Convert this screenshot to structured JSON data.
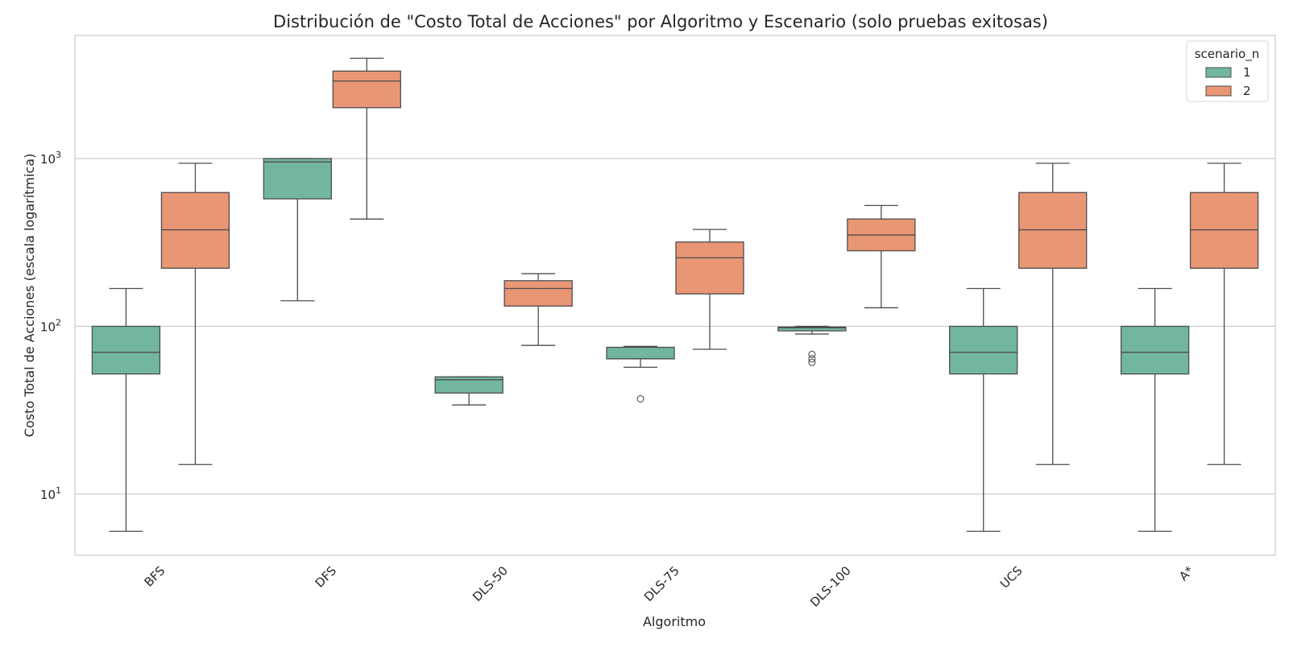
{
  "chart_data": {
    "type": "box",
    "title": "Distribución de \"Costo Total de Acciones\" por Algoritmo y Escenario (solo pruebas exitosas)",
    "xlabel": "Algoritmo",
    "ylabel": "Costo Total de Acciones (escala logarítmica)",
    "yscale": "log",
    "ylim": [
      4.5,
      5600
    ],
    "yticks": [
      10,
      100,
      1000
    ],
    "ytick_labels": [
      {
        "base": "10",
        "exp": "1"
      },
      {
        "base": "10",
        "exp": "2"
      },
      {
        "base": "10",
        "exp": "3"
      }
    ],
    "grid": "horizontal",
    "categories": [
      "BFS",
      "DFS",
      "DLS-50",
      "DLS-75",
      "DLS-100",
      "UCS",
      "A*"
    ],
    "legend": {
      "title": "scenario_n",
      "position": "top-right",
      "entries": [
        "1",
        "2"
      ]
    },
    "colors": {
      "1": "#72b6a1",
      "2": "#e99675",
      "line": "#4d4d4d",
      "grid": "#cccccc",
      "frame": "#cccccc"
    },
    "series": [
      {
        "name": "1",
        "boxes": [
          {
            "whislo": 6,
            "q1": 52,
            "med": 70,
            "q3": 100,
            "whishi": 168,
            "fliers": []
          },
          {
            "whislo": 142,
            "q1": 575,
            "med": 955,
            "q3": 1000,
            "whishi": 1000,
            "fliers": []
          },
          {
            "whislo": 34,
            "q1": 40,
            "med": 48,
            "q3": 50,
            "whishi": 50,
            "fliers": []
          },
          {
            "whislo": 57,
            "q1": 64,
            "med": 64,
            "q3": 75,
            "whishi": 76,
            "fliers": [
              37
            ]
          },
          {
            "whislo": 90,
            "q1": 94,
            "med": 98,
            "q3": 99,
            "whishi": 100,
            "fliers": [
              68,
              64,
              61
            ]
          },
          {
            "whislo": 6,
            "q1": 52,
            "med": 70,
            "q3": 100,
            "whishi": 168,
            "fliers": []
          },
          {
            "whislo": 6,
            "q1": 52,
            "med": 70,
            "q3": 100,
            "whishi": 168,
            "fliers": []
          }
        ]
      },
      {
        "name": "2",
        "boxes": [
          {
            "whislo": 15,
            "q1": 222,
            "med": 376,
            "q3": 627,
            "whishi": 937,
            "fliers": []
          },
          {
            "whislo": 436,
            "q1": 2010,
            "med": 2900,
            "q3": 3320,
            "whishi": 3960,
            "fliers": []
          },
          {
            "whislo": 77,
            "q1": 132,
            "med": 168,
            "q3": 187,
            "whishi": 206,
            "fliers": []
          },
          {
            "whislo": 73,
            "q1": 156,
            "med": 256,
            "q3": 318,
            "whishi": 378,
            "fliers": []
          },
          {
            "whislo": 129,
            "q1": 282,
            "med": 350,
            "q3": 436,
            "whishi": 525,
            "fliers": []
          },
          {
            "whislo": 15,
            "q1": 222,
            "med": 376,
            "q3": 627,
            "whishi": 937,
            "fliers": []
          },
          {
            "whislo": 15,
            "q1": 222,
            "med": 376,
            "q3": 627,
            "whishi": 937,
            "fliers": []
          }
        ]
      }
    ]
  }
}
